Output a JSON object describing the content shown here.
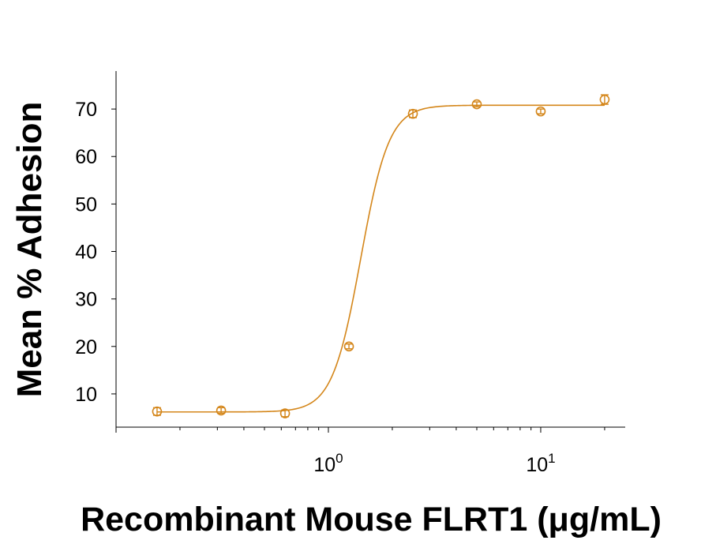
{
  "chart_data": {
    "type": "scatter",
    "xlabel": "Recombinant Mouse FLRT1 (μg/mL)",
    "ylabel": "Mean % Adhesion",
    "x_scale": "log",
    "xlim": [
      0.1,
      25
    ],
    "ylim": [
      3,
      78
    ],
    "y_ticks": [
      10,
      20,
      30,
      40,
      50,
      60,
      70
    ],
    "x_tick_labels": [
      {
        "value": 1,
        "base": "10",
        "exp": "0"
      },
      {
        "value": 10,
        "base": "10",
        "exp": "1"
      }
    ],
    "grid": false,
    "color": "#D4861A",
    "series": [
      {
        "x": [
          0.156,
          0.3125,
          0.625,
          1.25,
          2.5,
          5,
          10,
          20
        ],
        "y": [
          6.3,
          6.5,
          5.9,
          20.0,
          69.0,
          71.0,
          69.5,
          72.0
        ],
        "error": [
          0.8,
          0.6,
          0.7,
          0.5,
          0.8,
          0.5,
          0.5,
          1.0
        ]
      }
    ],
    "fit": {
      "model": "4PL",
      "bottom": 6.2,
      "top": 70.8,
      "ec50": 1.42,
      "hill": 6.5
    }
  }
}
